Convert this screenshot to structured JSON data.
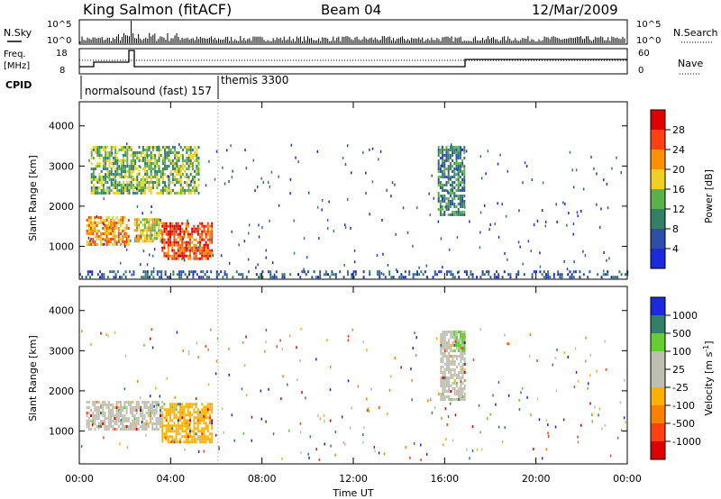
{
  "header": {
    "station": "King Salmon (fitACF)",
    "beam": "Beam 04",
    "date": "12/Mar/2009"
  },
  "labels": {
    "nsky": "N.Sky",
    "nsearch": "N.Search",
    "freq_line1": "Freq.",
    "freq_line2": "[MHz]",
    "nave": "Nave",
    "cpid": "CPID",
    "x_title": "Time UT",
    "slant_range": "Slant Range [km]",
    "power_title": "Power [dB]",
    "velocity_title_main": "Velocity",
    "velocity_title_unit": "[m s",
    "velocity_title_sup": "-1",
    "velocity_title_close": "]",
    "noise_tick_top": "10^5",
    "noise_tick_bottom": "10^0",
    "freq_tick_top": "18",
    "freq_tick_bottom": "8",
    "nave_tick_top": "60",
    "nave_tick_bottom": "0"
  },
  "cpid_segments": [
    {
      "label": "normalsound (fast) 157",
      "start_hour": 0.0
    },
    {
      "label": "themis 3300",
      "start_hour": 6.0
    }
  ],
  "chart_data": [
    {
      "type": "heatmap",
      "panel": "power",
      "x_range_hours": [
        0,
        24
      ],
      "x_ticks": [
        "00:00",
        "04:00",
        "08:00",
        "12:00",
        "16:00",
        "20:00",
        "00:00"
      ],
      "xlabel": "Time UT",
      "ylabel": "Slant Range [km]",
      "ylim": [
        180,
        4600
      ],
      "y_ticks": [
        1000,
        2000,
        3000,
        4000
      ],
      "colorbar": {
        "label": "Power [dB]",
        "ticks": [
          4,
          8,
          12,
          16,
          20,
          24,
          28
        ],
        "colors": [
          "#1a2adc",
          "#2e4fa8",
          "#357f69",
          "#5ab04a",
          "#f0d020",
          "#ff9000",
          "#ff4010",
          "#e00000"
        ]
      },
      "regions": [
        {
          "t0": 0.5,
          "t1": 5.2,
          "r0": 2300,
          "r1": 3500,
          "level": 3
        },
        {
          "t0": 0.3,
          "t1": 2.2,
          "r0": 1050,
          "r1": 1750,
          "level": 5
        },
        {
          "t0": 2.4,
          "t1": 3.6,
          "r0": 1100,
          "r1": 1700,
          "level": 4
        },
        {
          "t0": 3.6,
          "t1": 5.8,
          "r0": 700,
          "r1": 1600,
          "level": 6
        },
        {
          "t0": 15.7,
          "t1": 16.9,
          "r0": 1800,
          "r1": 3500,
          "level": 2
        },
        {
          "t0": 0.0,
          "t1": 24.0,
          "r0": 200,
          "r1": 400,
          "level": 1
        }
      ]
    },
    {
      "type": "heatmap",
      "panel": "velocity",
      "x_range_hours": [
        0,
        24
      ],
      "x_ticks": [
        "00:00",
        "04:00",
        "08:00",
        "12:00",
        "16:00",
        "20:00",
        "00:00"
      ],
      "xlabel": "Time UT",
      "ylabel": "Slant Range [km]",
      "ylim": [
        180,
        4600
      ],
      "y_ticks": [
        1000,
        2000,
        3000,
        4000
      ],
      "colorbar": {
        "label": "Velocity [m s-1]",
        "ticks": [
          "1000",
          "500",
          "100",
          "25",
          "-25",
          "-100",
          "-500",
          "-1000"
        ],
        "colors": [
          "#1a2adc",
          "#357f69",
          "#66cc33",
          "#bfbfb0",
          "#bfbfb0",
          "#ffb000",
          "#ff8000",
          "#ff4010",
          "#e00000"
        ]
      },
      "regions": [
        {
          "t0": 0.3,
          "t1": 3.6,
          "r0": 1050,
          "r1": 1750,
          "velocity": "-25..25"
        },
        {
          "t0": 3.6,
          "t1": 5.8,
          "r0": 700,
          "r1": 1700,
          "velocity": "-100"
        },
        {
          "t0": 15.8,
          "t1": 16.9,
          "r0": 1800,
          "r1": 3500,
          "velocity": "-25..25"
        },
        {
          "t0": 16.4,
          "t1": 16.9,
          "r0": 3000,
          "r1": 3500,
          "velocity": "100"
        }
      ]
    }
  ]
}
